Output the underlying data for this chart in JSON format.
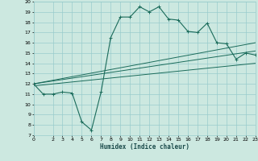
{
  "title": "",
  "xlabel": "Humidex (Indice chaleur)",
  "bg_color": "#cce8e0",
  "grid_color": "#99cccc",
  "line_color": "#1a6b5a",
  "ylim": [
    7,
    20
  ],
  "xlim": [
    0,
    23
  ],
  "yticks": [
    7,
    8,
    9,
    10,
    11,
    12,
    13,
    14,
    15,
    16,
    17,
    18,
    19,
    20
  ],
  "xticks": [
    0,
    2,
    3,
    4,
    5,
    6,
    7,
    8,
    9,
    10,
    11,
    12,
    13,
    14,
    15,
    16,
    17,
    18,
    19,
    20,
    21,
    22,
    23
  ],
  "main_series": [
    [
      0,
      12
    ],
    [
      1,
      11
    ],
    [
      2,
      11
    ],
    [
      3,
      11.2
    ],
    [
      4,
      11.1
    ],
    [
      5,
      8.3
    ],
    [
      6,
      7.5
    ],
    [
      7,
      11.2
    ],
    [
      8,
      16.5
    ],
    [
      9,
      18.5
    ],
    [
      10,
      18.5
    ],
    [
      11,
      19.5
    ],
    [
      12,
      19.0
    ],
    [
      13,
      19.5
    ],
    [
      14,
      18.3
    ],
    [
      15,
      18.2
    ],
    [
      16,
      17.1
    ],
    [
      17,
      17.0
    ],
    [
      18,
      17.9
    ],
    [
      19,
      16.0
    ],
    [
      20,
      15.9
    ],
    [
      21,
      14.4
    ],
    [
      22,
      15.0
    ],
    [
      23,
      14.8
    ]
  ],
  "line1": [
    [
      0,
      12.0
    ],
    [
      23,
      16.0
    ]
  ],
  "line2": [
    [
      0,
      12.0
    ],
    [
      23,
      15.2
    ]
  ],
  "line3": [
    [
      0,
      11.8
    ],
    [
      23,
      14.0
    ]
  ]
}
